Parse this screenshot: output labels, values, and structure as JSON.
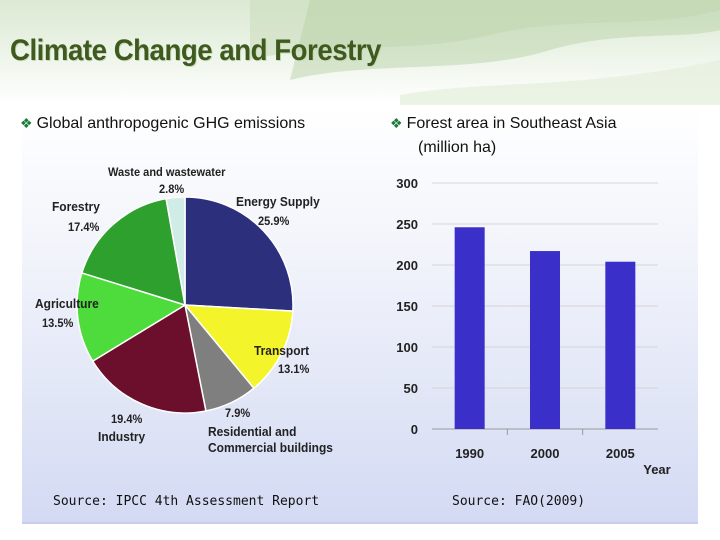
{
  "slide": {
    "title": "Climate Change and Forestry",
    "left_heading": "Global anthropogenic GHG emissions",
    "right_heading_line1": "Forest area in Southeast Asia",
    "right_heading_line2": "(million ha)",
    "left_source": "Source: IPCC 4th Assessment Report",
    "right_source": "Source: FAO(2009)",
    "bullet_icon": "diamond-bullet-icon"
  },
  "chart_data": [
    {
      "type": "pie",
      "title": "",
      "slices": [
        {
          "name": "Energy Supply",
          "pct_label": "25.9%",
          "value": 25.9,
          "color": "#2b2f7c"
        },
        {
          "name": "Transport",
          "pct_label": "13.1%",
          "value": 13.1,
          "color": "#f4f42a"
        },
        {
          "name": "Residential and Commercial buildings",
          "pct_label": "7.9%",
          "value": 7.9,
          "color": "#7f7f7f"
        },
        {
          "name": "Industry",
          "pct_label": "19.4%",
          "value": 19.4,
          "color": "#6b0f2c"
        },
        {
          "name": "Agriculture",
          "pct_label": "13.5%",
          "value": 13.5,
          "color": "#4ddc3c"
        },
        {
          "name": "Forestry",
          "pct_label": "17.4%",
          "value": 17.4,
          "color": "#2ea02e"
        },
        {
          "name": "Waste and wastewater",
          "pct_label": "2.8%",
          "value": 2.8,
          "color": "#d0ece6"
        }
      ]
    },
    {
      "type": "bar",
      "title": "",
      "categories": [
        "1990",
        "2000",
        "2005"
      ],
      "values": [
        246,
        217,
        204
      ],
      "xlabel": "Year",
      "ylabel": "",
      "ylim": [
        0,
        300
      ],
      "yticks": [
        0,
        50,
        100,
        150,
        200,
        250,
        300
      ],
      "grid": true,
      "bar_color": "#3a2fc8"
    }
  ]
}
